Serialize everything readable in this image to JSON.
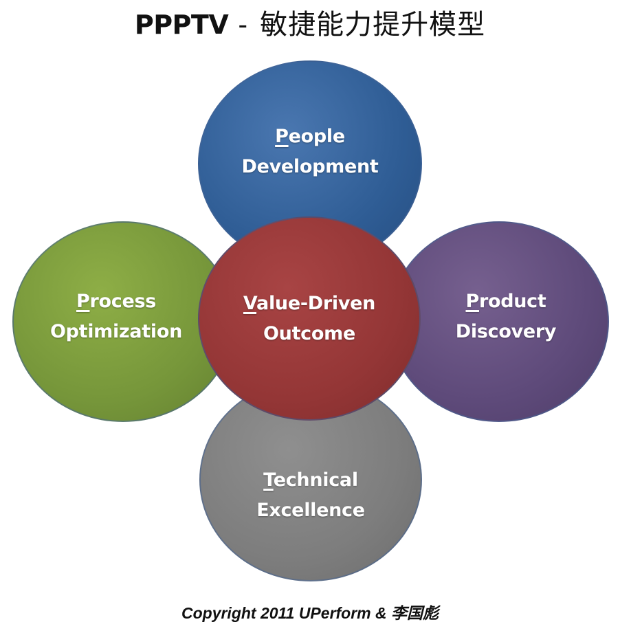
{
  "title": {
    "code": "PPPTV",
    "separator": "-",
    "chinese": "敏捷能力提升模型"
  },
  "circles": {
    "people": {
      "initial": "P",
      "line1_rest": "eople",
      "line2": "Development",
      "color": "#2f5d95"
    },
    "process": {
      "initial": "P",
      "line1_rest": "rocess",
      "line2": "Optimization",
      "color": "#76963a"
    },
    "product": {
      "initial": "P",
      "line1_rest": "roduct",
      "line2": "Discovery",
      "color": "#5e4a7a"
    },
    "technical": {
      "initial": "T",
      "line1_rest": "echnical",
      "line2": "Excellence",
      "color": "#7d7d7d"
    },
    "value": {
      "initial": "V",
      "line1_rest": "alue-Driven",
      "line2": "Outcome",
      "color": "#943636"
    }
  },
  "footer": {
    "copyright": "Copyright 2011 UPerform & 李国彪"
  }
}
